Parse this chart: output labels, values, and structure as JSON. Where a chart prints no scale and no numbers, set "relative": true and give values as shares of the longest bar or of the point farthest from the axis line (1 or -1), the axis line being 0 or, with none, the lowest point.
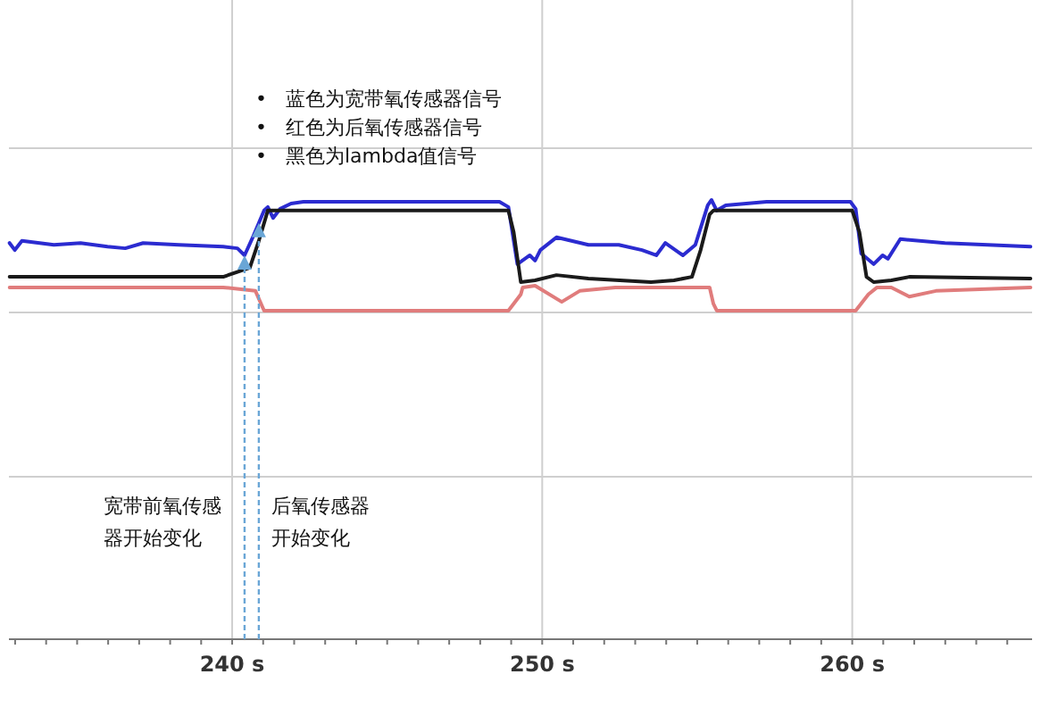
{
  "chart_data": {
    "type": "line",
    "relative": true,
    "grid": true,
    "xlim": [
      232.8,
      265.8
    ],
    "xticks": [
      {
        "value": 233,
        "label": null
      },
      {
        "value": 234,
        "label": null
      },
      {
        "value": 235,
        "label": null
      },
      {
        "value": 236,
        "label": null
      },
      {
        "value": 237,
        "label": null
      },
      {
        "value": 238,
        "label": null
      },
      {
        "value": 239,
        "label": null
      },
      {
        "value": 240,
        "label": "240 s"
      },
      {
        "value": 241,
        "label": null
      },
      {
        "value": 242,
        "label": null
      },
      {
        "value": 243,
        "label": null
      },
      {
        "value": 244,
        "label": null
      },
      {
        "value": 245,
        "label": null
      },
      {
        "value": 246,
        "label": null
      },
      {
        "value": 247,
        "label": null
      },
      {
        "value": 248,
        "label": null
      },
      {
        "value": 249,
        "label": null
      },
      {
        "value": 250,
        "label": "250 s"
      },
      {
        "value": 251,
        "label": null
      },
      {
        "value": 252,
        "label": null
      },
      {
        "value": 253,
        "label": null
      },
      {
        "value": 254,
        "label": null
      },
      {
        "value": 255,
        "label": null
      },
      {
        "value": 256,
        "label": null
      },
      {
        "value": 257,
        "label": null
      },
      {
        "value": 258,
        "label": null
      },
      {
        "value": 259,
        "label": null
      },
      {
        "value": 260,
        "label": "260 s"
      },
      {
        "value": 261,
        "label": null
      },
      {
        "value": 262,
        "label": null
      },
      {
        "value": 263,
        "label": null
      },
      {
        "value": 264,
        "label": null
      },
      {
        "value": 265,
        "label": null
      }
    ],
    "series": [
      {
        "color": "#2b2bd0",
        "x": [
          232.82,
          232.99,
          233.22,
          234.25,
          235.11,
          235.98,
          236.55,
          237.13,
          238.28,
          239.71,
          240.17,
          240.4,
          240.69,
          241.03,
          241.15,
          241.32,
          241.55,
          241.9,
          242.3,
          244.02,
          245.75,
          247.47,
          248.62,
          248.91,
          249.2,
          249.6,
          249.77,
          249.94,
          250.46,
          251.49,
          252.47,
          253.22,
          253.68,
          253.97,
          254.54,
          254.94,
          255.34,
          255.46,
          255.63,
          255.92,
          257.24,
          259.94,
          260.11,
          260.29,
          260.69,
          260.98,
          261.15,
          261.55,
          262.99,
          265.75
        ],
        "values": [
          0.902,
          0.886,
          0.907,
          0.898,
          0.902,
          0.894,
          0.89,
          0.902,
          0.898,
          0.894,
          0.89,
          0.874,
          0.919,
          0.976,
          0.984,
          0.959,
          0.98,
          0.992,
          0.996,
          0.996,
          0.996,
          0.996,
          0.996,
          0.984,
          0.854,
          0.874,
          0.862,
          0.886,
          0.915,
          0.898,
          0.898,
          0.886,
          0.874,
          0.902,
          0.874,
          0.898,
          0.988,
          1.0,
          0.976,
          0.988,
          0.996,
          0.996,
          0.98,
          0.878,
          0.854,
          0.874,
          0.866,
          0.911,
          0.902,
          0.894
        ]
      },
      {
        "color": "#1a1a1a",
        "x": [
          232.82,
          239.71,
          240.57,
          240.86,
          241.15,
          248.91,
          249.08,
          249.31,
          249.77,
          250.46,
          251.49,
          253.51,
          254.25,
          254.83,
          255.11,
          255.4,
          255.52,
          260.0,
          260.23,
          260.46,
          260.69,
          261.26,
          261.84,
          265.75
        ],
        "values": [
          0.825,
          0.825,
          0.846,
          0.907,
          0.976,
          0.976,
          0.927,
          0.813,
          0.817,
          0.829,
          0.821,
          0.813,
          0.817,
          0.825,
          0.886,
          0.967,
          0.976,
          0.976,
          0.927,
          0.825,
          0.813,
          0.817,
          0.825,
          0.821
        ]
      },
      {
        "color": "#e07c7c",
        "x": [
          232.82,
          239.71,
          240.75,
          241.03,
          248.91,
          249.31,
          249.37,
          249.77,
          250.63,
          251.21,
          252.36,
          255.4,
          255.52,
          255.63,
          260.11,
          260.52,
          260.8,
          261.26,
          261.84,
          262.7,
          265.75
        ],
        "values": [
          0.801,
          0.801,
          0.793,
          0.748,
          0.748,
          0.785,
          0.801,
          0.805,
          0.768,
          0.793,
          0.801,
          0.801,
          0.764,
          0.748,
          0.748,
          0.785,
          0.801,
          0.801,
          0.78,
          0.793,
          0.801
        ]
      }
    ],
    "ref_lines": [
      {
        "axis": "x",
        "value": 240.4,
        "label": "宽带前氧传感器开始变化",
        "color": "#6aa6d6",
        "line_style": "dashed"
      },
      {
        "axis": "x",
        "value": 240.86,
        "label": "后氧传感器开始变化",
        "color": "#6aa6d6",
        "line_style": "dashed"
      }
    ],
    "annotations": [
      "•",
      "蓝色为宽带氧传感器信号",
      "•",
      "红色为后氧传感器信号",
      "•",
      "黑色为lambda值信号"
    ]
  }
}
